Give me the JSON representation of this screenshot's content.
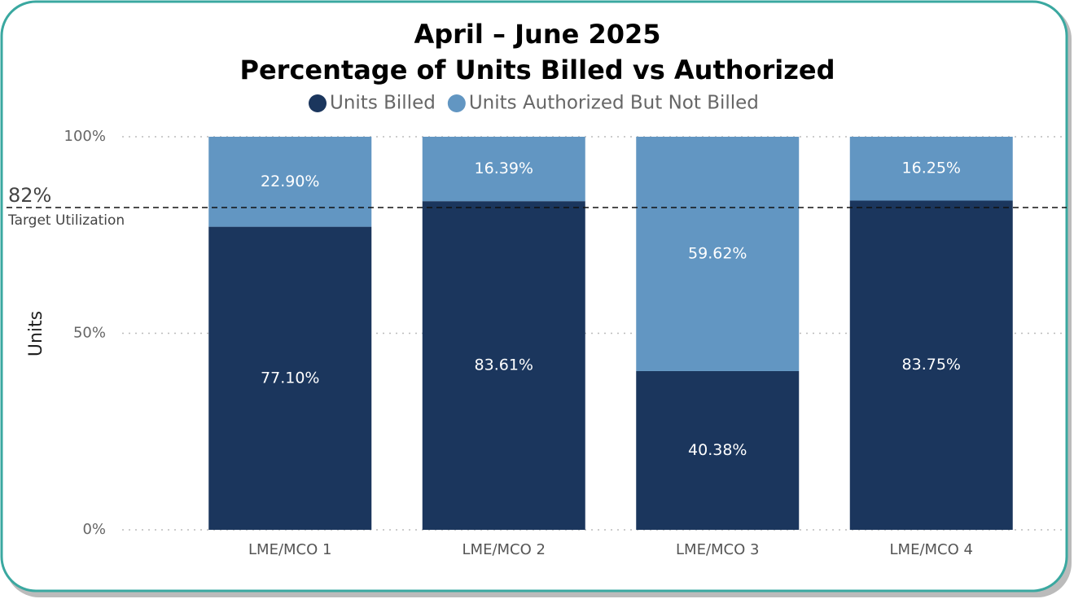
{
  "chart_data": {
    "type": "stacked_bar",
    "title": "April – June 2025",
    "subtitle": "Percentage of Units Billed vs Authorized",
    "y_label": "Units",
    "categories": [
      "LME/MCO 1",
      "LME/MCO 2",
      "LME/MCO 3",
      "LME/MCO 4"
    ],
    "series": [
      {
        "name": "Units Billed",
        "color": "#1b365d",
        "values": [
          77.1,
          83.61,
          40.38,
          83.75
        ],
        "value_labels": [
          "77.10%",
          "83.61%",
          "40.38%",
          "83.75%"
        ]
      },
      {
        "name": "Units Authorized But Not Billed",
        "color": "#6296c2",
        "values": [
          22.9,
          16.39,
          59.62,
          16.25
        ],
        "value_labels": [
          "22.90%",
          "16.39%",
          "59.62%",
          "16.25%"
        ]
      }
    ],
    "ylim": [
      0,
      100
    ],
    "yticks": [
      {
        "value": 0,
        "label": "0%"
      },
      {
        "value": 50,
        "label": "50%"
      },
      {
        "value": 100,
        "label": "100%"
      }
    ],
    "grid": true,
    "legend": "top",
    "target": {
      "value": 82,
      "label": "82%",
      "text": "Target Utilization"
    }
  }
}
